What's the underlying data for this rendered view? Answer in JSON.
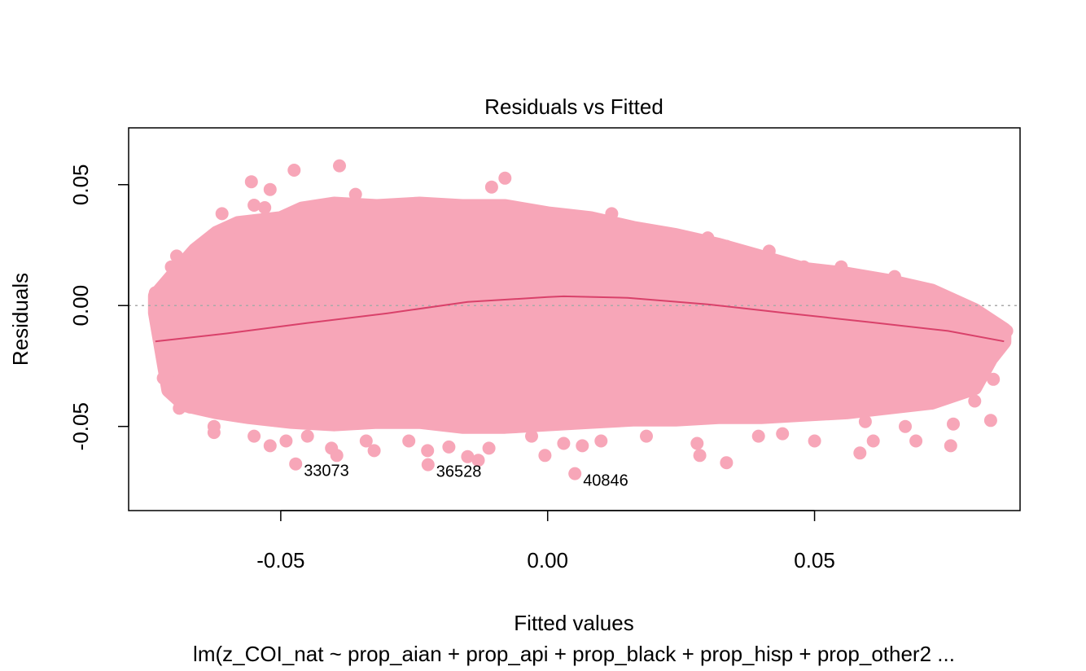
{
  "chart_data": {
    "type": "scatter",
    "title": "Residuals vs Fitted",
    "xlabel": "Fitted values",
    "ylabel": "Residuals",
    "subtitle": "lm(z_COI_nat ~ prop_aian + prop_api + prop_black + prop_hisp + prop_other2  ...",
    "xlim": [
      -0.0785,
      0.0885
    ],
    "ylim": [
      -0.0848,
      0.0735
    ],
    "x_ticks": [
      {
        "value": -0.05,
        "label": "-0.05"
      },
      {
        "value": 0.0,
        "label": "0.00"
      },
      {
        "value": 0.05,
        "label": "0.05"
      }
    ],
    "y_ticks": [
      {
        "value": -0.05,
        "label": "-0.05"
      },
      {
        "value": 0.0,
        "label": "0.00"
      },
      {
        "value": 0.05,
        "label": "0.05"
      }
    ],
    "reference_line": {
      "y": 0.0,
      "style": "dotted",
      "color": "#a9a9a9"
    },
    "point_color": "#f7a6b8",
    "smooth_color": "#d9416a",
    "smooth_line": [
      {
        "x": -0.0735,
        "y": -0.0148
      },
      {
        "x": -0.06,
        "y": -0.0115
      },
      {
        "x": -0.045,
        "y": -0.0072
      },
      {
        "x": -0.03,
        "y": -0.0032
      },
      {
        "x": -0.015,
        "y": 0.0015
      },
      {
        "x": 0.0,
        "y": 0.0035
      },
      {
        "x": 0.003,
        "y": 0.0038
      },
      {
        "x": 0.015,
        "y": 0.0032
      },
      {
        "x": 0.03,
        "y": 0.0005
      },
      {
        "x": 0.045,
        "y": -0.0032
      },
      {
        "x": 0.06,
        "y": -0.0068
      },
      {
        "x": 0.075,
        "y": -0.0105
      },
      {
        "x": 0.0855,
        "y": -0.0148
      }
    ],
    "labeled_points": [
      {
        "label": "33073",
        "x": -0.0472,
        "y": -0.0655
      },
      {
        "label": "36528",
        "x": -0.0224,
        "y": -0.0658
      },
      {
        "label": "40846",
        "x": 0.0051,
        "y": -0.0695
      }
    ],
    "outlier_points": [
      {
        "x": -0.0735,
        "y": 0.0053
      },
      {
        "x": -0.0715,
        "y": 0.0055
      },
      {
        "x": -0.0555,
        "y": 0.0512
      },
      {
        "x": -0.0475,
        "y": 0.056
      },
      {
        "x": -0.039,
        "y": 0.0578
      },
      {
        "x": -0.052,
        "y": 0.048
      },
      {
        "x": -0.008,
        "y": 0.0527
      },
      {
        "x": -0.0105,
        "y": 0.049
      },
      {
        "x": -0.055,
        "y": 0.0415
      },
      {
        "x": -0.053,
        "y": 0.0405
      },
      {
        "x": -0.061,
        "y": 0.038
      },
      {
        "x": -0.036,
        "y": 0.046
      },
      {
        "x": -0.0625,
        "y": 0.028
      },
      {
        "x": -0.064,
        "y": 0.025
      },
      {
        "x": -0.0695,
        "y": 0.0205
      },
      {
        "x": -0.0705,
        "y": 0.016
      },
      {
        "x": 0.012,
        "y": 0.038
      },
      {
        "x": 0.03,
        "y": 0.028
      },
      {
        "x": 0.0335,
        "y": 0.0245
      },
      {
        "x": 0.0415,
        "y": 0.0225
      },
      {
        "x": 0.048,
        "y": 0.016
      },
      {
        "x": 0.055,
        "y": 0.016
      },
      {
        "x": 0.065,
        "y": 0.012
      },
      {
        "x": 0.072,
        "y": 0.0055
      },
      {
        "x": 0.0795,
        "y": -0.003
      },
      {
        "x": 0.086,
        "y": -0.0105
      },
      {
        "x": 0.0835,
        "y": -0.0305
      },
      {
        "x": 0.08,
        "y": -0.0395
      },
      {
        "x": 0.083,
        "y": -0.0475
      },
      {
        "x": 0.076,
        "y": -0.049
      },
      {
        "x": 0.0755,
        "y": -0.058
      },
      {
        "x": 0.069,
        "y": -0.056
      },
      {
        "x": 0.067,
        "y": -0.05
      },
      {
        "x": 0.061,
        "y": -0.056
      },
      {
        "x": 0.0585,
        "y": -0.061
      },
      {
        "x": 0.0595,
        "y": -0.048
      },
      {
        "x": 0.05,
        "y": -0.056
      },
      {
        "x": 0.044,
        "y": -0.053
      },
      {
        "x": 0.0395,
        "y": -0.054
      },
      {
        "x": 0.0335,
        "y": -0.065
      },
      {
        "x": 0.0285,
        "y": -0.062
      },
      {
        "x": 0.028,
        "y": -0.057
      },
      {
        "x": 0.0185,
        "y": -0.054
      },
      {
        "x": 0.01,
        "y": -0.056
      },
      {
        "x": 0.0065,
        "y": -0.058
      },
      {
        "x": 0.003,
        "y": -0.057
      },
      {
        "x": -0.0005,
        "y": -0.062
      },
      {
        "x": -0.003,
        "y": -0.054
      },
      {
        "x": -0.011,
        "y": -0.059
      },
      {
        "x": -0.013,
        "y": -0.064
      },
      {
        "x": -0.015,
        "y": -0.0625
      },
      {
        "x": -0.0185,
        "y": -0.0585
      },
      {
        "x": -0.0225,
        "y": -0.06
      },
      {
        "x": -0.026,
        "y": -0.056
      },
      {
        "x": -0.0325,
        "y": -0.06
      },
      {
        "x": -0.034,
        "y": -0.056
      },
      {
        "x": -0.0395,
        "y": -0.062
      },
      {
        "x": -0.0405,
        "y": -0.059
      },
      {
        "x": -0.045,
        "y": -0.054
      },
      {
        "x": -0.049,
        "y": -0.056
      },
      {
        "x": -0.052,
        "y": -0.058
      },
      {
        "x": -0.055,
        "y": -0.054
      },
      {
        "x": -0.0625,
        "y": -0.05
      },
      {
        "x": -0.0625,
        "y": -0.0525
      },
      {
        "x": -0.072,
        "y": -0.03
      },
      {
        "x": -0.071,
        "y": -0.035
      },
      {
        "x": -0.069,
        "y": -0.0425
      },
      {
        "x": -0.067,
        "y": -0.042
      }
    ],
    "grid": false,
    "legend": "none"
  }
}
